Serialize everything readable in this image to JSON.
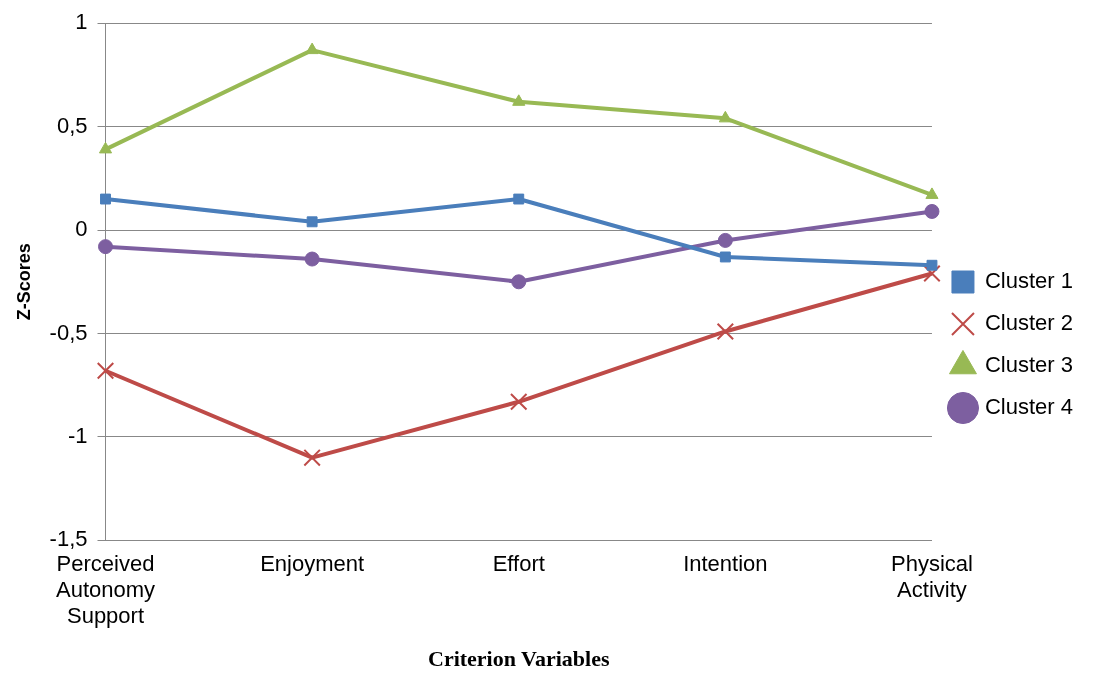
{
  "chart_data": {
    "type": "line",
    "xlabel": "Criterion Variables",
    "ylabel": "Z-Scores",
    "categories": [
      "Perceived Autonomy Support",
      "Enjoyment",
      "Effort",
      "Intention",
      "Physical Activity"
    ],
    "series": [
      {
        "name": "Cluster 1",
        "color": "#4a7ebb",
        "marker": "square",
        "values": [
          0.15,
          0.04,
          0.15,
          -0.13,
          -0.17
        ]
      },
      {
        "name": "Cluster 2",
        "color": "#be4b48",
        "marker": "cross",
        "values": [
          -0.68,
          -1.1,
          -0.83,
          -0.49,
          -0.21
        ]
      },
      {
        "name": "Cluster 3",
        "color": "#98b954",
        "marker": "triangle",
        "values": [
          0.39,
          0.87,
          0.62,
          0.54,
          0.17
        ]
      },
      {
        "name": "Cluster 4",
        "color": "#7d5fa0",
        "marker": "circle",
        "values": [
          -0.08,
          -0.14,
          -0.25,
          -0.05,
          0.09
        ]
      }
    ],
    "ylim": [
      -1.5,
      1
    ],
    "yticks": [
      {
        "value": -1.5,
        "label": "-1,5"
      },
      -1,
      {
        "value": -0.5,
        "label": "-0,5"
      },
      0,
      {
        "value": 0.5,
        "label": "0,5"
      },
      1
    ],
    "grid": "y",
    "legend": "right",
    "line_style": "solid"
  }
}
